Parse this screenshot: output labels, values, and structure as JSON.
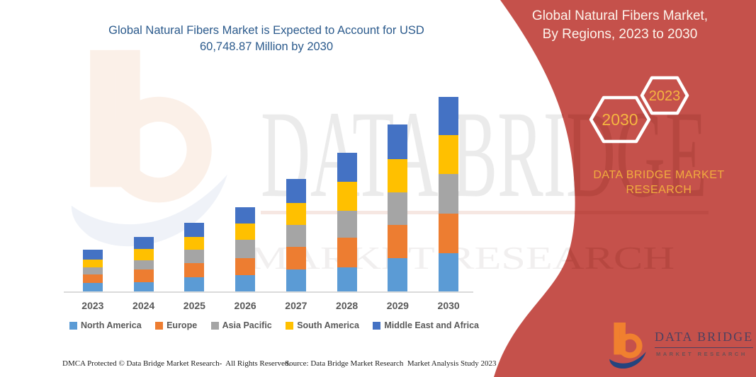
{
  "header": {
    "title_line1": "Global Natural Fibers Market is Expected to Account for USD",
    "title_line2": "60,748.87 Million by 2030"
  },
  "banner": {
    "title_line1": "Global Natural Fibers Market,",
    "title_line2": "By Regions, 2023 to 2030",
    "hexagon_back_label": "2023",
    "hexagon_front_label": "2030",
    "brand_line1": "DATA BRIDGE MARKET",
    "brand_line2": "RESEARCH",
    "background_color": "#C5514B",
    "title_color": "#FDF4EC",
    "accent_color": "#F5B640"
  },
  "watermark": {
    "line1": "DATA BRIDGE",
    "line2": "MARKET RESEARCH"
  },
  "chart_data": {
    "type": "bar",
    "stacked": true,
    "title": "Global Natural Fibers Market is Expected to Account for USD 60,748.87 Million by 2030",
    "stated_value_2030": "USD 60,748.87 Million",
    "categories": [
      "2023",
      "2024",
      "2025",
      "2026",
      "2027",
      "2028",
      "2029",
      "2030"
    ],
    "series": [
      {
        "name": "North America",
        "color": "#5B9BD5",
        "values": [
          13,
          14,
          21,
          24,
          32,
          35,
          48,
          55
        ]
      },
      {
        "name": "Europe",
        "color": "#ED7D31",
        "values": [
          12,
          18,
          20,
          24,
          32,
          42,
          47,
          56
        ]
      },
      {
        "name": "Asia Pacific",
        "color": "#A5A5A5",
        "values": [
          10,
          13,
          19,
          26,
          31,
          38,
          46,
          56
        ]
      },
      {
        "name": "South America",
        "color": "#FFC000",
        "values": [
          11,
          16,
          18,
          23,
          31,
          41,
          47,
          55
        ]
      },
      {
        "name": "Middle East and Africa",
        "color": "#4472C4",
        "values": [
          14,
          17,
          20,
          23,
          34,
          41,
          49,
          54
        ]
      }
    ],
    "totals_by_year": [
      60,
      78,
      98,
      120,
      160,
      197,
      237,
      276
    ],
    "ylim": [
      0,
      280
    ],
    "units": "relative height (no value axis shown in figure)",
    "xlabel": "",
    "ylabel": "",
    "grid": false,
    "legend_position": "bottom"
  },
  "footer": {
    "left": "DMCA Protected © Data Bridge Market Research-  All Rights Reserved.",
    "source": "Source: Data Bridge Market Research  Market Analysis Study 2023"
  },
  "logo": {
    "wordmark": "DATA BRIDGE",
    "subtitle": "MARKET RESEARCH"
  }
}
